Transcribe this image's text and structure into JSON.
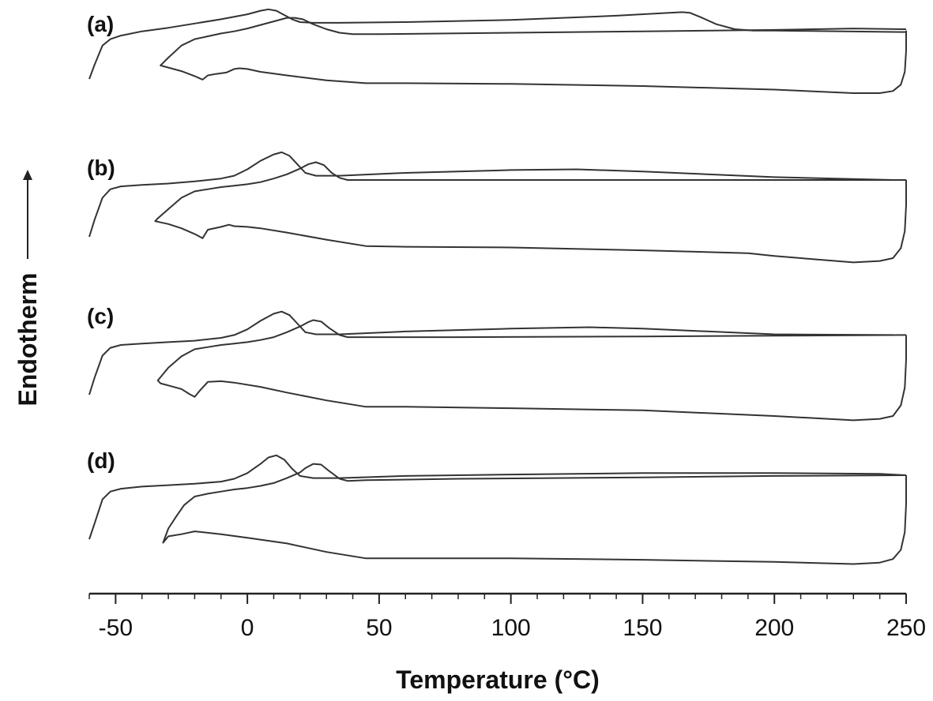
{
  "chart_data": {
    "type": "line",
    "title": "",
    "xlabel": "Temperature (°C)",
    "ylabel": "Endotherm",
    "xlim": [
      -60,
      250
    ],
    "x_ticks": [
      -50,
      0,
      50,
      100,
      150,
      200,
      250
    ],
    "x_tick_labels": [
      "-50",
      "0",
      "50",
      "100",
      "150",
      "200",
      "250"
    ],
    "grid": false,
    "legend": "none",
    "panels": [
      {
        "label": "(d)",
        "loops": [
          {
            "x": [
              -60,
              -58,
              -55,
              -52,
              -48,
              -40,
              -30,
              -20,
              -10,
              -5,
              0,
              5,
              8,
              11,
              14,
              17,
              20,
              25,
              35,
              60,
              100,
              150,
              200,
              240,
              250
            ],
            "y": [
              0.0,
              0.22,
              0.56,
              0.67,
              0.71,
              0.74,
              0.76,
              0.78,
              0.81,
              0.85,
              0.93,
              1.06,
              1.15,
              1.18,
              1.12,
              0.99,
              0.89,
              0.86,
              0.86,
              0.89,
              0.91,
              0.93,
              0.93,
              0.92,
              0.9
            ]
          },
          {
            "x": [
              250,
              250,
              249.5,
              248,
              245,
              240,
              230,
              200,
              150,
              100,
              60,
              45,
              30,
              15,
              0,
              -10,
              -20,
              -25,
              -30,
              -32,
              -30,
              -27,
              -24,
              -20,
              -15,
              -10,
              -5,
              0,
              5,
              10,
              15,
              20,
              22,
              25,
              28,
              31,
              35,
              38,
              45,
              80,
              150,
              200,
              250
            ],
            "y": [
              0.9,
              0.5,
              0.1,
              -0.15,
              -0.28,
              -0.33,
              -0.35,
              -0.32,
              -0.29,
              -0.27,
              -0.27,
              -0.27,
              -0.18,
              -0.06,
              0.02,
              0.07,
              0.11,
              0.07,
              0.04,
              -0.05,
              0.15,
              0.32,
              0.48,
              0.6,
              0.64,
              0.67,
              0.7,
              0.72,
              0.75,
              0.79,
              0.86,
              0.94,
              1.0,
              1.06,
              1.05,
              0.96,
              0.85,
              0.82,
              0.83,
              0.85,
              0.87,
              0.89,
              0.9
            ]
          }
        ]
      },
      {
        "label": "(c)",
        "loops": [
          {
            "x": [
              -60,
              -58,
              -55,
              -52,
              -48,
              -40,
              -30,
              -20,
              -10,
              -5,
              0,
              5,
              10,
              13,
              16,
              19,
              22,
              26,
              35,
              60,
              100,
              130,
              150,
              200,
              245
            ],
            "y": [
              0.0,
              0.24,
              0.55,
              0.66,
              0.7,
              0.72,
              0.74,
              0.76,
              0.8,
              0.84,
              0.92,
              1.04,
              1.14,
              1.17,
              1.12,
              1.0,
              0.88,
              0.85,
              0.85,
              0.89,
              0.93,
              0.95,
              0.93,
              0.85,
              0.84
            ]
          },
          {
            "x": [
              250,
              250,
              249.5,
              248,
              245,
              240,
              230,
              200,
              150,
              100,
              60,
              45,
              30,
              15,
              5,
              -5,
              -10,
              -15,
              -18,
              -20,
              -22,
              -25,
              -29,
              -33,
              -34,
              -30,
              -25,
              -20,
              -15,
              -10,
              -5,
              0,
              5,
              10,
              15,
              20,
              23,
              25,
              28,
              31,
              35,
              38,
              45,
              80,
              150,
              200,
              250
            ],
            "y": [
              0.84,
              0.5,
              0.1,
              -0.15,
              -0.3,
              -0.34,
              -0.36,
              -0.3,
              -0.22,
              -0.19,
              -0.17,
              -0.17,
              -0.08,
              0.03,
              0.11,
              0.17,
              0.19,
              0.18,
              0.06,
              -0.03,
              0.01,
              0.08,
              0.12,
              0.16,
              0.2,
              0.38,
              0.54,
              0.64,
              0.67,
              0.7,
              0.72,
              0.74,
              0.77,
              0.81,
              0.88,
              0.96,
              1.02,
              1.05,
              1.03,
              0.94,
              0.84,
              0.81,
              0.81,
              0.81,
              0.82,
              0.83,
              0.84
            ]
          }
        ]
      },
      {
        "label": "(b)",
        "loops": [
          {
            "x": [
              -60,
              -58,
              -55,
              -52,
              -48,
              -40,
              -30,
              -20,
              -10,
              -5,
              0,
              5,
              10,
              13,
              16,
              19,
              22,
              26,
              35,
              60,
              100,
              125,
              150,
              200,
              245
            ],
            "y": [
              0.0,
              0.24,
              0.55,
              0.67,
              0.71,
              0.73,
              0.75,
              0.78,
              0.82,
              0.86,
              0.95,
              1.07,
              1.16,
              1.19,
              1.14,
              1.02,
              0.9,
              0.86,
              0.86,
              0.9,
              0.94,
              0.95,
              0.92,
              0.84,
              0.8
            ]
          },
          {
            "x": [
              250,
              250,
              249.5,
              248,
              245,
              240,
              230,
              200,
              190,
              150,
              100,
              60,
              45,
              30,
              15,
              5,
              0,
              -5,
              -7,
              -10,
              -15,
              -17,
              -20,
              -25,
              -30,
              -35,
              -34,
              -30,
              -25,
              -20,
              -15,
              -10,
              -5,
              0,
              5,
              10,
              15,
              20,
              23,
              26,
              29,
              32,
              35,
              38,
              45,
              80,
              150,
              200,
              250
            ],
            "y": [
              0.8,
              0.45,
              0.08,
              -0.16,
              -0.3,
              -0.34,
              -0.36,
              -0.27,
              -0.23,
              -0.19,
              -0.15,
              -0.14,
              -0.13,
              -0.04,
              0.06,
              0.12,
              0.14,
              0.15,
              0.17,
              0.14,
              0.1,
              -0.02,
              0.04,
              0.12,
              0.18,
              0.22,
              0.26,
              0.39,
              0.55,
              0.64,
              0.67,
              0.7,
              0.72,
              0.74,
              0.77,
              0.82,
              0.88,
              0.96,
              1.02,
              1.05,
              1.01,
              0.9,
              0.83,
              0.8,
              0.8,
              0.8,
              0.8,
              0.8,
              0.8
            ]
          }
        ]
      },
      {
        "label": "(a)",
        "loops": [
          {
            "x": [
              -60,
              -58,
              -55,
              -52,
              -48,
              -40,
              -30,
              -20,
              -10,
              0,
              5,
              8,
              11,
              14,
              17,
              20,
              25,
              35,
              60,
              100,
              140,
              160,
              165,
              168,
              172,
              178,
              185,
              192,
              200,
              250
            ],
            "y": [
              0.0,
              0.2,
              0.47,
              0.56,
              0.61,
              0.67,
              0.72,
              0.78,
              0.84,
              0.91,
              0.96,
              0.98,
              0.96,
              0.9,
              0.84,
              0.8,
              0.79,
              0.79,
              0.8,
              0.83,
              0.89,
              0.93,
              0.94,
              0.93,
              0.87,
              0.77,
              0.7,
              0.68,
              0.68,
              0.66
            ]
          },
          {
            "x": [
              250,
              250,
              249.5,
              248,
              245,
              240,
              230,
              200,
              150,
              100,
              60,
              45,
              30,
              15,
              5,
              0,
              -3,
              -5,
              -8,
              -12,
              -15,
              -17,
              -20,
              -25,
              -30,
              -33,
              -30,
              -25,
              -20,
              -15,
              -10,
              -5,
              0,
              5,
              10,
              15,
              18,
              21,
              25,
              30,
              35,
              40,
              50,
              100,
              150,
              200,
              230,
              250
            ],
            "y": [
              0.68,
              0.4,
              0.1,
              -0.08,
              -0.17,
              -0.2,
              -0.2,
              -0.15,
              -0.1,
              -0.07,
              -0.06,
              -0.06,
              -0.02,
              0.05,
              0.1,
              0.14,
              0.15,
              0.14,
              0.09,
              0.07,
              0.05,
              -0.01,
              0.04,
              0.11,
              0.16,
              0.19,
              0.3,
              0.47,
              0.56,
              0.6,
              0.64,
              0.67,
              0.71,
              0.76,
              0.81,
              0.86,
              0.86,
              0.84,
              0.77,
              0.7,
              0.65,
              0.63,
              0.63,
              0.65,
              0.67,
              0.69,
              0.71,
              0.7
            ]
          }
        ]
      }
    ]
  }
}
